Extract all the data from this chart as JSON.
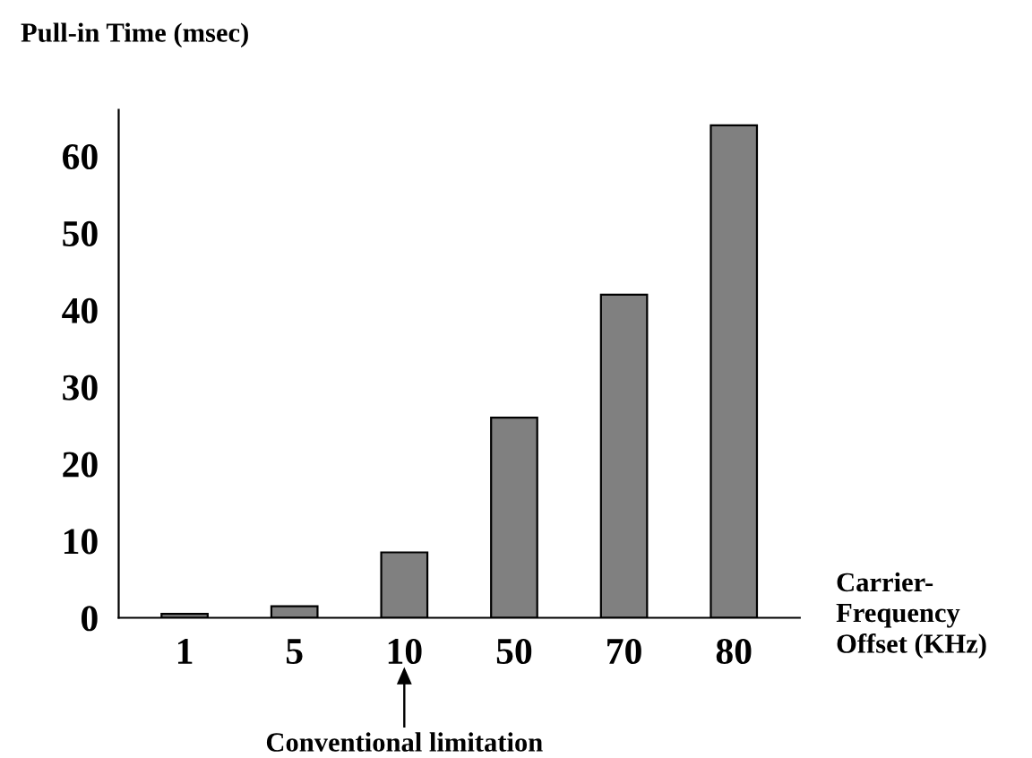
{
  "chart_data": {
    "type": "bar",
    "ylabel": "Pull-in Time (msec)",
    "xlabel": "Carrier-\nFrequency\nOffset (KHz)",
    "categories": [
      "1",
      "5",
      "10",
      "50",
      "70",
      "80"
    ],
    "values": [
      0.5,
      1.5,
      8.5,
      26,
      42,
      64
    ],
    "color": "#808080",
    "ylim": [
      0,
      66
    ],
    "yticks": [
      0,
      10,
      20,
      30,
      40,
      50,
      60
    ],
    "grid": false,
    "annotations": [
      "Conventional limitation"
    ]
  }
}
